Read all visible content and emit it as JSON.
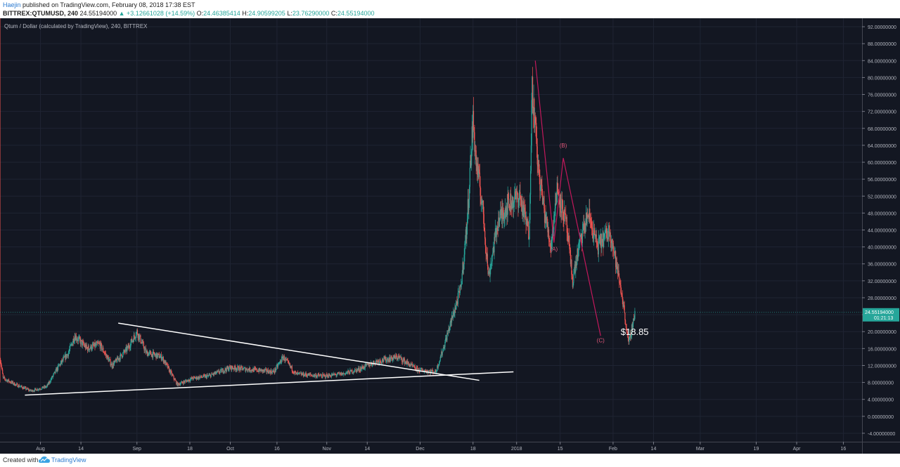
{
  "header": {
    "author": "Haejin",
    "published": "published on TradingView.com, February 08, 2018 17:38 EST",
    "symbol": "BITTREX:QTUMUSD, 240",
    "last": "24.55194000",
    "change": "+3.12661028 (+14.59%)",
    "o_label": "O:",
    "o": "24.46385414",
    "h_label": "H:",
    "h": "24.90599205",
    "l_label": "L:",
    "l": "23.76290000",
    "c_label": "C:",
    "c": "24.55194000"
  },
  "footer": {
    "created": "Created with",
    "brand": "TradingView"
  },
  "colors": {
    "background": "#131722",
    "up": "#26a69a",
    "down": "#ef5350",
    "wave": "#c2185b",
    "trend": "#ffffff",
    "grid": "#1f2433"
  },
  "chart_data": {
    "type": "candlestick",
    "title": "Qtum / Dollar (calculated by TradingView), 240, BITTREX",
    "y_range": [
      -6,
      94
    ],
    "y_ticks": [
      "92.00000000",
      "88.00000000",
      "84.00000000",
      "80.00000000",
      "76.00000000",
      "72.00000000",
      "68.00000000",
      "64.00000000",
      "60.00000000",
      "56.00000000",
      "52.00000000",
      "48.00000000",
      "44.00000000",
      "40.00000000",
      "36.00000000",
      "32.00000000",
      "28.00000000",
      "24.00000000",
      "20.00000000",
      "16.00000000",
      "12.00000000",
      "8.00000000",
      "4.00000000",
      "0.00000000",
      "-4.00000000"
    ],
    "y_tick_values": [
      92,
      88,
      84,
      80,
      76,
      72,
      68,
      64,
      60,
      56,
      52,
      48,
      44,
      40,
      36,
      32,
      28,
      24,
      20,
      16,
      12,
      8,
      4,
      0,
      -4
    ],
    "x_ticks": [
      "Aug",
      "14",
      "Sep",
      "18",
      "Oct",
      "16",
      "Nov",
      "14",
      "Dec",
      "18",
      "2018",
      "15",
      "Feb",
      "14",
      "Mar",
      "19",
      "Apr",
      "16"
    ],
    "x_tick_dates": [
      "2017-08-01",
      "2017-08-14",
      "2017-09-01",
      "2017-09-18",
      "2017-10-01",
      "2017-10-16",
      "2017-11-01",
      "2017-11-14",
      "2017-12-01",
      "2017-12-18",
      "2018-01-01",
      "2018-01-15",
      "2018-02-01",
      "2018-02-14",
      "2018-03-01",
      "2018-03-19",
      "2018-04-01",
      "2018-04-16"
    ],
    "x_range": [
      "2017-07-19",
      "2018-04-22"
    ],
    "price_path": [
      [
        "2017-07-19",
        14
      ],
      [
        "2017-07-20",
        9
      ],
      [
        "2017-07-24",
        7.5
      ],
      [
        "2017-07-29",
        6
      ],
      [
        "2017-08-03",
        7
      ],
      [
        "2017-08-07",
        12
      ],
      [
        "2017-08-10",
        15
      ],
      [
        "2017-08-12",
        19
      ],
      [
        "2017-08-16",
        16
      ],
      [
        "2017-08-20",
        17
      ],
      [
        "2017-08-24",
        12
      ],
      [
        "2017-08-29",
        16
      ],
      [
        "2017-09-01",
        20
      ],
      [
        "2017-09-04",
        15
      ],
      [
        "2017-09-09",
        14
      ],
      [
        "2017-09-14",
        7.5
      ],
      [
        "2017-09-19",
        9
      ],
      [
        "2017-09-24",
        9.5
      ],
      [
        "2017-10-01",
        11.5
      ],
      [
        "2017-10-08",
        11
      ],
      [
        "2017-10-15",
        10.5
      ],
      [
        "2017-10-18",
        14
      ],
      [
        "2017-10-22",
        10
      ],
      [
        "2017-10-31",
        9.5
      ],
      [
        "2017-11-06",
        10
      ],
      [
        "2017-11-11",
        11
      ],
      [
        "2017-11-17",
        13
      ],
      [
        "2017-11-24",
        14
      ],
      [
        "2017-11-30",
        11
      ],
      [
        "2017-12-06",
        10.5
      ],
      [
        "2017-12-08",
        15
      ],
      [
        "2017-12-12",
        25
      ],
      [
        "2017-12-14",
        30
      ],
      [
        "2017-12-16",
        45
      ],
      [
        "2017-12-18",
        70
      ],
      [
        "2017-12-19",
        60
      ],
      [
        "2017-12-21",
        50
      ],
      [
        "2017-12-23",
        33
      ],
      [
        "2017-12-26",
        46
      ],
      [
        "2017-12-29",
        50
      ],
      [
        "2018-01-02",
        52
      ],
      [
        "2018-01-05",
        43
      ],
      [
        "2018-01-06",
        78
      ],
      [
        "2018-01-08",
        58
      ],
      [
        "2018-01-10",
        48
      ],
      [
        "2018-01-12",
        40
      ],
      [
        "2018-01-14",
        54
      ],
      [
        "2018-01-17",
        45
      ],
      [
        "2018-01-19",
        32
      ],
      [
        "2018-01-21",
        40
      ],
      [
        "2018-01-24",
        48
      ],
      [
        "2018-01-27",
        40
      ],
      [
        "2018-01-31",
        44
      ],
      [
        "2018-02-02",
        36
      ],
      [
        "2018-02-04",
        28
      ],
      [
        "2018-02-06",
        17
      ],
      [
        "2018-02-08",
        24.55
      ]
    ],
    "trendlines": [
      {
        "from": [
          "2017-08-26",
          22
        ],
        "to": [
          "2017-12-20",
          8.5
        ]
      },
      {
        "from": [
          "2017-07-27",
          5
        ],
        "to": [
          "2017-12-31",
          10.5
        ]
      }
    ],
    "wave_labels": [
      {
        "text": "(A)",
        "date": "2018-01-13",
        "price": 39
      },
      {
        "text": "(B)",
        "date": "2018-01-16",
        "price": 63.5
      },
      {
        "text": "(C)",
        "date": "2018-01-28",
        "price": 17.5
      }
    ],
    "annotation": "$18.85",
    "price_label": "24.55194000",
    "countdown": "01:21:13"
  }
}
